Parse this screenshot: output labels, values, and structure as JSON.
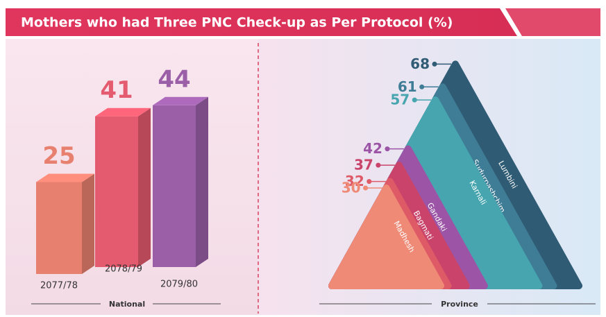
{
  "title": "Mothers who had Three PNC Check-up as Per Protocol (%)",
  "chart_data": [
    {
      "type": "bar3d",
      "label": "National",
      "categories": [
        "2077/78",
        "2078/79",
        "2079/80"
      ],
      "values": [
        25,
        41,
        44
      ],
      "colors": [
        "#e8806f",
        "#e45a6e",
        "#9b5fa8"
      ]
    },
    {
      "type": "pyramid",
      "label": "Province",
      "categories": [
        "Lumbini",
        "Sudurpashchim",
        "Karnali",
        "Gandaki",
        "Bagmati",
        "Koshi",
        "Madhesh"
      ],
      "values": [
        68,
        61,
        57,
        42,
        37,
        32,
        30
      ],
      "colors": [
        "#2f5b74",
        "#3f7d97",
        "#46a5ae",
        "#9c55a6",
        "#c9436a",
        "#de5a66",
        "#ee8a76"
      ]
    }
  ]
}
